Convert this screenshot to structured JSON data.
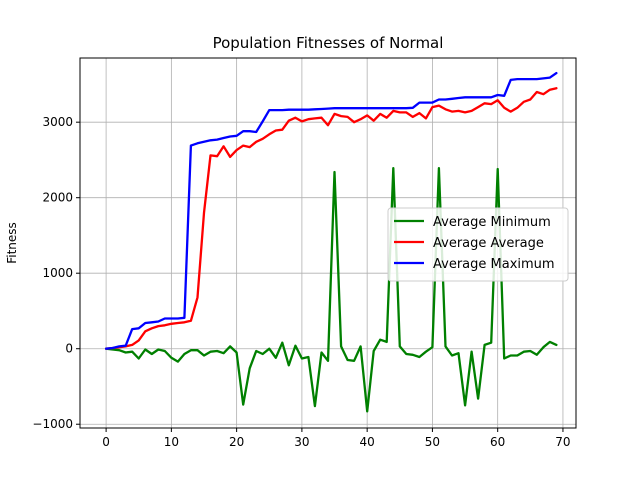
{
  "chart_data": {
    "type": "line",
    "title": "Population Fitnesses of Normal",
    "xlabel": "",
    "ylabel": "Fitness",
    "xlim": [
      -4,
      72
    ],
    "ylim": [
      -1050,
      3850
    ],
    "xticks": [
      0,
      10,
      20,
      30,
      40,
      50,
      60,
      70
    ],
    "yticks": [
      -1000,
      0,
      1000,
      2000,
      3000
    ],
    "grid": true,
    "legend_position": "center-right",
    "x": [
      0,
      1,
      2,
      3,
      4,
      5,
      6,
      7,
      8,
      9,
      10,
      11,
      12,
      13,
      14,
      15,
      16,
      17,
      18,
      19,
      20,
      21,
      22,
      23,
      24,
      25,
      26,
      27,
      28,
      29,
      30,
      31,
      32,
      33,
      34,
      35,
      36,
      37,
      38,
      39,
      40,
      41,
      42,
      43,
      44,
      45,
      46,
      47,
      48,
      49,
      50,
      51,
      52,
      53,
      54,
      55,
      56,
      57,
      58,
      59,
      60,
      61,
      62,
      63,
      64,
      65,
      66,
      67,
      68,
      69
    ],
    "series": [
      {
        "name": "Average Minimum",
        "color": "#008000",
        "values": [
          0,
          -10,
          -20,
          -50,
          -40,
          -130,
          -10,
          -70,
          -10,
          -30,
          -120,
          -170,
          -70,
          -20,
          -20,
          -90,
          -40,
          -30,
          -60,
          30,
          -50,
          -740,
          -260,
          -30,
          -70,
          0,
          -120,
          80,
          -220,
          40,
          -130,
          -110,
          -760,
          -50,
          -160,
          2340,
          30,
          -150,
          -160,
          30,
          -830,
          -30,
          120,
          90,
          2390,
          30,
          -70,
          -80,
          -110,
          -40,
          20,
          2390,
          30,
          -90,
          -60,
          -750,
          -40,
          -660,
          50,
          80,
          2380,
          -130,
          -90,
          -90,
          -40,
          -30,
          -80,
          20,
          90,
          50
        ]
      },
      {
        "name": "Average Average",
        "color": "#ff0000",
        "values": [
          0,
          10,
          20,
          30,
          50,
          110,
          230,
          270,
          300,
          310,
          330,
          340,
          350,
          370,
          680,
          1800,
          2560,
          2550,
          2680,
          2540,
          2630,
          2690,
          2670,
          2740,
          2780,
          2840,
          2890,
          2900,
          3020,
          3060,
          3010,
          3040,
          3050,
          3060,
          2960,
          3110,
          3080,
          3070,
          3000,
          3040,
          3090,
          3020,
          3110,
          3060,
          3150,
          3130,
          3130,
          3070,
          3120,
          3050,
          3200,
          3220,
          3170,
          3140,
          3150,
          3130,
          3150,
          3200,
          3250,
          3240,
          3290,
          3190,
          3140,
          3190,
          3270,
          3300,
          3400,
          3370,
          3430,
          3450
        ]
      },
      {
        "name": "Average Maximum",
        "color": "#0000ff",
        "values": [
          0,
          10,
          30,
          40,
          260,
          270,
          340,
          350,
          360,
          400,
          400,
          400,
          410,
          2690,
          2720,
          2740,
          2760,
          2770,
          2790,
          2810,
          2820,
          2880,
          2880,
          2870,
          3010,
          3160,
          3160,
          3160,
          3165,
          3165,
          3165,
          3165,
          3170,
          3175,
          3180,
          3185,
          3185,
          3185,
          3185,
          3185,
          3185,
          3185,
          3185,
          3185,
          3185,
          3185,
          3185,
          3190,
          3260,
          3260,
          3260,
          3300,
          3300,
          3310,
          3320,
          3330,
          3330,
          3330,
          3330,
          3330,
          3360,
          3350,
          3560,
          3570,
          3570,
          3570,
          3570,
          3580,
          3590,
          3650
        ]
      }
    ]
  }
}
